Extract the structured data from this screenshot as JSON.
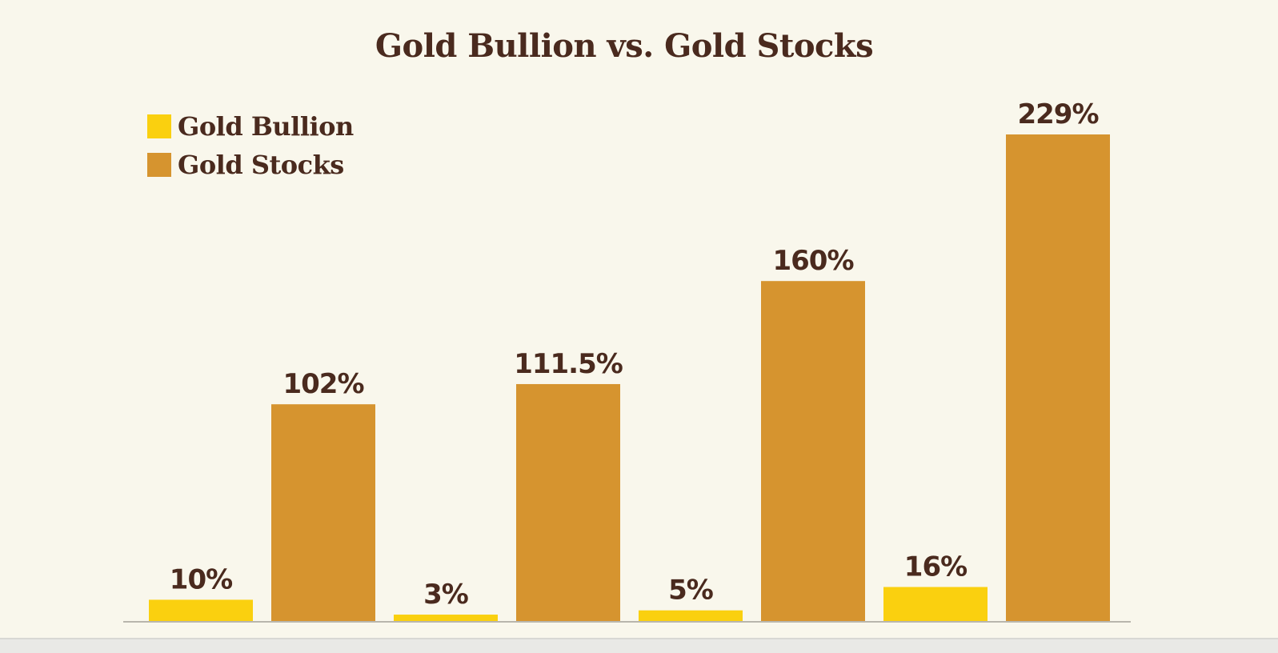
{
  "chart_data": {
    "type": "bar",
    "title": "Gold Bullion vs. Gold Stocks",
    "xlabel": "",
    "ylabel": "",
    "ylim": [
      0,
      229
    ],
    "grid": false,
    "legend_position": "top-left",
    "categories": [
      "",
      "",
      "",
      ""
    ],
    "series": [
      {
        "name": "Gold Bullion",
        "color": "#fad00f",
        "values": [
          10,
          3,
          5,
          16
        ],
        "labels": [
          "10%",
          "3%",
          "5%",
          "16%"
        ]
      },
      {
        "name": "Gold Stocks",
        "color": "#d6942f",
        "values": [
          102,
          111.5,
          160,
          229
        ],
        "labels": [
          "102%",
          "111.5%",
          "160%",
          "229%"
        ]
      }
    ]
  }
}
